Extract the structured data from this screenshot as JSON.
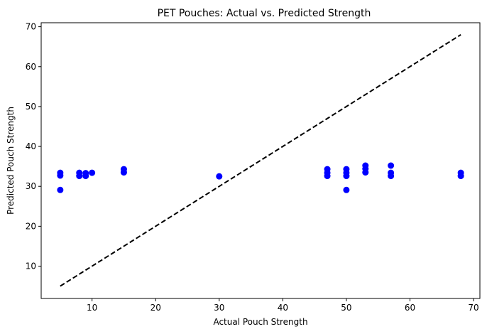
{
  "chart_data": {
    "type": "scatter",
    "title": "PET Pouches: Actual vs. Predicted Strength",
    "xlabel": "Actual Pouch Strength",
    "ylabel": "Predicted Pouch Strength",
    "xlim": [
      2,
      71
    ],
    "ylim": [
      1.9,
      71
    ],
    "xticks": [
      10,
      20,
      30,
      40,
      50,
      60,
      70
    ],
    "yticks": [
      10,
      20,
      30,
      40,
      50,
      60,
      70
    ],
    "grid": false,
    "point_color": "#0000ff",
    "reference_line": {
      "from": [
        5,
        5
      ],
      "to": [
        68,
        68
      ],
      "color": "#000000",
      "style": "dashed"
    },
    "points": [
      {
        "x": 5,
        "y": 33.4
      },
      {
        "x": 5,
        "y": 32.7
      },
      {
        "x": 5,
        "y": 29.1
      },
      {
        "x": 8,
        "y": 33.4
      },
      {
        "x": 8,
        "y": 32.6
      },
      {
        "x": 9,
        "y": 33.3
      },
      {
        "x": 9,
        "y": 32.6
      },
      {
        "x": 10,
        "y": 33.4
      },
      {
        "x": 15,
        "y": 34.3
      },
      {
        "x": 15,
        "y": 33.5
      },
      {
        "x": 30,
        "y": 32.5
      },
      {
        "x": 47,
        "y": 34.3
      },
      {
        "x": 47,
        "y": 33.4
      },
      {
        "x": 47,
        "y": 32.6
      },
      {
        "x": 50,
        "y": 34.3
      },
      {
        "x": 50,
        "y": 33.4
      },
      {
        "x": 50,
        "y": 32.6
      },
      {
        "x": 50,
        "y": 29.1
      },
      {
        "x": 53,
        "y": 35.2
      },
      {
        "x": 53,
        "y": 34.4
      },
      {
        "x": 53,
        "y": 33.5
      },
      {
        "x": 57,
        "y": 35.2
      },
      {
        "x": 57,
        "y": 33.4
      },
      {
        "x": 57,
        "y": 32.6
      },
      {
        "x": 68,
        "y": 33.4
      },
      {
        "x": 68,
        "y": 32.6
      }
    ]
  }
}
